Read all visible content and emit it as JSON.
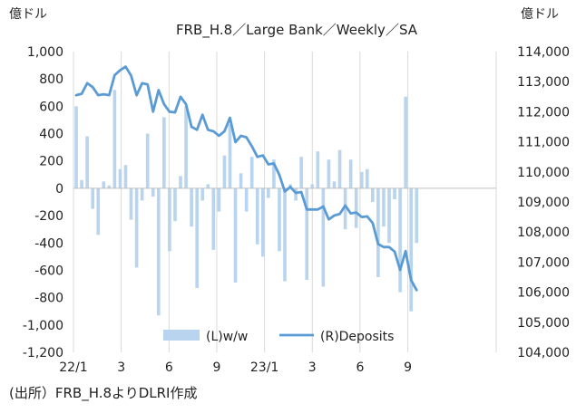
{
  "chart_data": {
    "type": "bar+line",
    "title": "FRB_H.8／Large Bank／Weekly／SA",
    "left_unit": "億ドル",
    "right_unit": "億ドル",
    "left_axis": {
      "ylim": [
        -1200,
        1000
      ],
      "ticks": [
        1000,
        800,
        600,
        400,
        200,
        0,
        -200,
        -400,
        -600,
        -800,
        -1000,
        -1200
      ],
      "tick_labels": [
        "1,000",
        "800",
        "600",
        "400",
        "200",
        "0",
        "-200",
        "-400",
        "-600",
        "-800",
        "-1,000",
        "-1,200"
      ],
      "negative_color": "#e00000"
    },
    "right_axis": {
      "ylim": [
        104000,
        114000
      ],
      "ticks": [
        114000,
        113000,
        112000,
        111000,
        110000,
        109000,
        108000,
        107000,
        106000,
        105000,
        104000
      ],
      "tick_labels": [
        "114,000",
        "113,000",
        "112,000",
        "111,000",
        "110,000",
        "109,000",
        "108,000",
        "107,000",
        "106,000",
        "105,000",
        "104,000"
      ]
    },
    "x_axis": {
      "range_weeks": [
        0,
        77
      ],
      "ticks": [
        {
          "week": 0,
          "label": "22/1"
        },
        {
          "week": 8.7,
          "label": "3"
        },
        {
          "week": 17.4,
          "label": "6"
        },
        {
          "week": 26.1,
          "label": "9"
        },
        {
          "week": 34.8,
          "label": "23/1"
        },
        {
          "week": 43.5,
          "label": "3"
        },
        {
          "week": 52.2,
          "label": "6"
        },
        {
          "week": 60.9,
          "label": "9"
        }
      ]
    },
    "legend": {
      "placement": "bottom-center",
      "bar_label": "(L)w/w",
      "line_label": "(R)Deposits"
    },
    "series": [
      {
        "name": "(L)w/w",
        "type": "bar",
        "color": "#b8d4ee",
        "values": [
          600,
          60,
          380,
          -150,
          -340,
          50,
          20,
          720,
          140,
          170,
          -230,
          -580,
          -90,
          400,
          -60,
          -930,
          520,
          -460,
          -240,
          90,
          600,
          -280,
          -730,
          -90,
          30,
          -450,
          -170,
          240,
          470,
          -690,
          110,
          -170,
          230,
          -410,
          -500,
          -70,
          210,
          -460,
          -680,
          30,
          -90,
          230,
          -670,
          30,
          270,
          -720,
          210,
          50,
          280,
          -300,
          210,
          -290,
          120,
          140,
          -100,
          -650,
          -280,
          -400,
          -80,
          -760,
          670,
          -900,
          -400
        ]
      },
      {
        "name": "(R)Deposits",
        "type": "line",
        "color": "#5b9bd5",
        "values": [
          112550,
          112600,
          112950,
          112820,
          112550,
          112580,
          112550,
          113220,
          113380,
          113500,
          113200,
          112550,
          112950,
          112910,
          112000,
          112720,
          112250,
          112000,
          111980,
          112500,
          112250,
          111500,
          111400,
          111900,
          111400,
          111350,
          111200,
          111350,
          111800,
          110990,
          111200,
          111150,
          110850,
          110500,
          110550,
          110250,
          110280,
          109900,
          109350,
          109500,
          109300,
          109330,
          108750,
          108750,
          108750,
          108850,
          108420,
          108550,
          108600,
          108880,
          108620,
          108650,
          108500,
          108520,
          108300,
          107600,
          107500,
          107500,
          107350,
          106740,
          107370,
          106400,
          106070
        ]
      }
    ]
  },
  "source_note": "(出所）FRB_H.8よりDLRI作成"
}
